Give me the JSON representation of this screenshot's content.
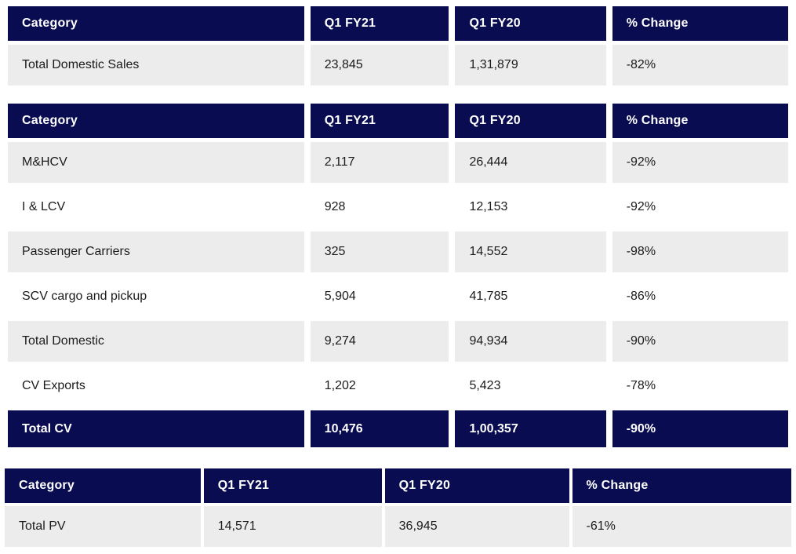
{
  "colors": {
    "header_bg": "#0a0c52",
    "alt_row_bg": "#ececec",
    "body_text": "#1b1b1b",
    "header_text": "#ffffff"
  },
  "tables": [
    {
      "name": "total-domestic-sales",
      "columns": [
        "Category",
        "Q1 FY21",
        "Q1 FY20",
        "% Change"
      ],
      "rows": [
        {
          "category": "Total Domestic Sales",
          "q1fy21": "23,845",
          "q1fy20": "1,31,879",
          "change": "-82%"
        }
      ]
    },
    {
      "name": "commercial-vehicles",
      "columns": [
        "Category",
        "Q1 FY21",
        "Q1 FY20",
        "% Change"
      ],
      "rows": [
        {
          "category": "M&HCV",
          "q1fy21": "2,117",
          "q1fy20": "26,444",
          "change": "-92%"
        },
        {
          "category": "I & LCV",
          "q1fy21": "928",
          "q1fy20": "12,153",
          "change": "-92%"
        },
        {
          "category": "Passenger Carriers",
          "q1fy21": "325",
          "q1fy20": "14,552",
          "change": "-98%"
        },
        {
          "category": "SCV cargo and pickup",
          "q1fy21": "5,904",
          "q1fy20": "41,785",
          "change": "-86%"
        },
        {
          "category": "Total Domestic",
          "q1fy21": "9,274",
          "q1fy20": "94,934",
          "change": "-90%"
        },
        {
          "category": "CV Exports",
          "q1fy21": "1,202",
          "q1fy20": "5,423",
          "change": "-78%"
        }
      ],
      "footer": {
        "category": "Total CV",
        "q1fy21": "10,476",
        "q1fy20": "1,00,357",
        "change": "-90%"
      }
    },
    {
      "name": "passenger-vehicles",
      "columns": [
        "Category",
        "Q1 FY21",
        "Q1 FY20",
        "% Change"
      ],
      "rows": [
        {
          "category": "Total PV",
          "q1fy21": "14,571",
          "q1fy20": "36,945",
          "change": "-61%"
        }
      ]
    }
  ],
  "chart_data": [
    {
      "type": "table",
      "title": "Total Domestic Sales",
      "columns": [
        "Category",
        "Q1 FY21",
        "Q1 FY20",
        "% Change"
      ],
      "rows": [
        [
          "Total Domestic Sales",
          23845,
          131879,
          "-82%"
        ]
      ]
    },
    {
      "type": "table",
      "title": "Commercial Vehicles",
      "columns": [
        "Category",
        "Q1 FY21",
        "Q1 FY20",
        "% Change"
      ],
      "rows": [
        [
          "M&HCV",
          2117,
          26444,
          "-92%"
        ],
        [
          "I & LCV",
          928,
          12153,
          "-92%"
        ],
        [
          "Passenger Carriers",
          325,
          14552,
          "-98%"
        ],
        [
          "SCV cargo and pickup",
          5904,
          41785,
          "-86%"
        ],
        [
          "Total Domestic",
          9274,
          94934,
          "-90%"
        ],
        [
          "CV Exports",
          1202,
          5423,
          "-78%"
        ],
        [
          "Total CV",
          10476,
          100357,
          "-90%"
        ]
      ]
    },
    {
      "type": "table",
      "title": "Passenger Vehicles",
      "columns": [
        "Category",
        "Q1 FY21",
        "Q1 FY20",
        "% Change"
      ],
      "rows": [
        [
          "Total PV",
          14571,
          36945,
          "-61%"
        ]
      ]
    }
  ]
}
